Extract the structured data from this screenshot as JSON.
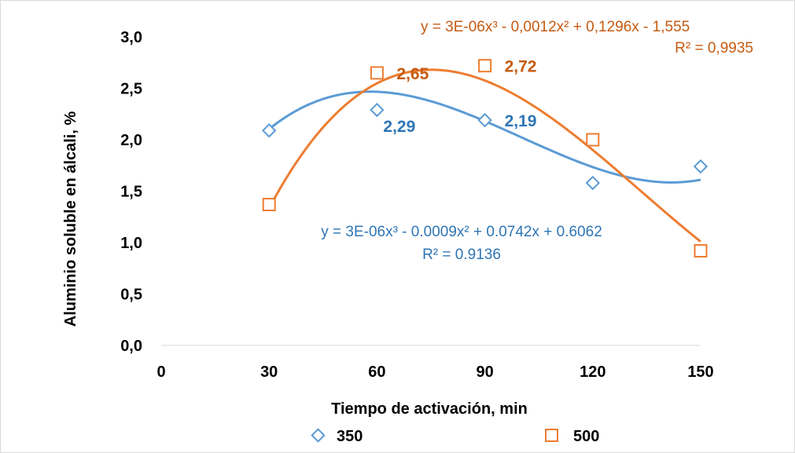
{
  "chart_data": {
    "type": "scatter",
    "xlabel": "Tiempo de activación, min",
    "ylabel": "Aluminio soluble en álcali, %",
    "xlim": [
      0,
      150
    ],
    "ylim": [
      0,
      3
    ],
    "x_ticks": [
      "0",
      "30",
      "60",
      "90",
      "120",
      "150"
    ],
    "y_ticks": [
      "0,0",
      "0,5",
      "1,0",
      "1,5",
      "2,0",
      "2,5",
      "3,0"
    ],
    "grid": false,
    "legend_position": "bottom",
    "series": [
      {
        "name": "350",
        "color": "#5b9bd5",
        "label_color": "#2e75b6",
        "marker": "diamond",
        "x": [
          30,
          60,
          90,
          120,
          150
        ],
        "y": [
          2.09,
          2.29,
          2.19,
          1.58,
          1.74
        ],
        "data_labels": [
          {
            "index": 1,
            "text": "2,29"
          },
          {
            "index": 2,
            "text": "2,19"
          }
        ],
        "trendline": {
          "type": "polynomial",
          "coefficients": [
            0.6062,
            0.0742,
            -0.0009,
            3e-06
          ],
          "equation": "y = 3E-06x³ - 0.0009x² + 0.0742x + 0.6062",
          "r2": "R² = 0.9136"
        }
      },
      {
        "name": "500",
        "color": "#ed7d31",
        "label_color": "#c55a11",
        "marker": "square",
        "x": [
          30,
          60,
          90,
          120,
          150
        ],
        "y": [
          1.37,
          2.65,
          2.72,
          2.0,
          0.92
        ],
        "data_labels": [
          {
            "index": 1,
            "text": "2,65"
          },
          {
            "index": 2,
            "text": "2,72"
          }
        ],
        "trendline": {
          "type": "polynomial",
          "coefficients": [
            -1.5553,
            0.1296,
            -0.0012,
            3e-06
          ],
          "equation": "y = 3E-06x³ - 0,0012x² + 0,1296x - 1,555",
          "r2": "R² = 0,9935"
        }
      }
    ]
  }
}
